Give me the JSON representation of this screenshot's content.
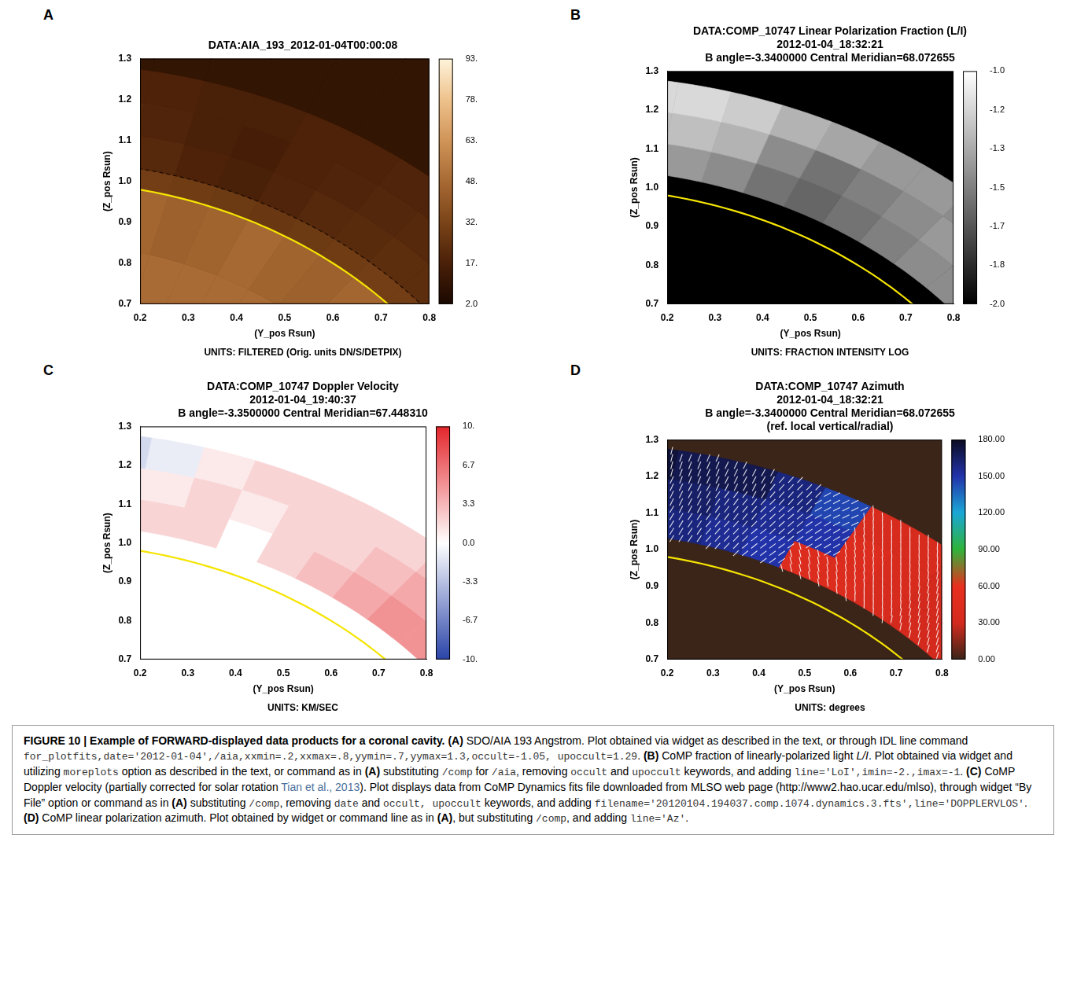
{
  "chart_data": [
    {
      "panel": "A",
      "type": "heatmap",
      "title": [
        "DATA:AIA_193_2012-01-04T00:00:08"
      ],
      "subtitle": "UNITS: FILTERED (Orig. units DN/S/DETPIX)",
      "xlabel": "(Y_pos Rsun)",
      "ylabel": "(Z_pos Rsun)",
      "xlim": [
        0.2,
        0.8
      ],
      "xticks": [
        0.2,
        0.3,
        0.4,
        0.5,
        0.6,
        0.7,
        0.8
      ],
      "ylim": [
        0.7,
        1.3
      ],
      "yticks": [
        0.7,
        0.8,
        0.9,
        {
          "value": 1,
          "label": "1.0"
        },
        1.1,
        1.2,
        1.3
      ],
      "radius_bins": [
        0.7,
        0.85,
        1.0,
        1.05,
        1.13,
        1.21,
        1.29,
        1.6
      ],
      "angle_bins": [
        40,
        45,
        50,
        55,
        60,
        65,
        70,
        75,
        80,
        85
      ],
      "cells": [
        [
          48,
          48,
          48,
          48,
          48,
          48,
          48,
          48,
          48
        ],
        [
          45,
          46,
          44,
          45,
          47,
          45,
          44,
          46,
          45
        ],
        [
          30,
          30,
          29,
          28,
          27,
          28,
          29,
          30,
          30
        ],
        [
          23,
          23,
          22,
          21,
          19,
          17,
          18,
          21,
          22
        ],
        [
          21,
          21,
          20,
          19,
          18,
          16,
          17,
          19,
          20
        ],
        [
          19,
          19,
          19,
          18,
          18,
          17,
          17,
          18,
          18
        ],
        [
          10,
          10,
          10,
          10,
          10,
          10,
          10,
          10,
          10
        ]
      ],
      "fill_value": 10,
      "circles": [
        {
          "radius": 1.0,
          "color": "#f5e400",
          "line_style": "solid"
        },
        {
          "radius": 1.05,
          "color": "#1a0a00",
          "line_style": "dashed"
        }
      ],
      "colorbar": {
        "lim": [
          2,
          93
        ],
        "ticks": [
          {
            "value": 2,
            "label": "2.0"
          },
          {
            "value": 17.17,
            "label": "17."
          },
          {
            "value": 32.33,
            "label": "32."
          },
          {
            "value": 47.5,
            "label": "48."
          },
          {
            "value": 62.67,
            "label": "63."
          },
          {
            "value": 77.83,
            "label": "78."
          },
          {
            "value": 93,
            "label": "93."
          }
        ],
        "colors": [
          "#1a0800",
          "#4a2008",
          "#7a4418",
          "#a86a34",
          "#d09458",
          "#eec28c",
          "#fff4dc"
        ]
      }
    },
    {
      "panel": "B",
      "type": "heatmap",
      "title": [
        "DATA:COMP_10747 Linear Polarization Fraction (L/I)",
        "2012-01-04_18:32:21",
        "B angle=-3.3400000 Central Meridian=68.072655"
      ],
      "subtitle": "UNITS: FRACTION INTENSITY LOG",
      "xlabel": "(Y_pos Rsun)",
      "ylabel": "(Z_pos Rsun)",
      "xlim": [
        0.2,
        0.8
      ],
      "xticks": [
        0.2,
        0.3,
        0.4,
        0.5,
        0.6,
        0.7,
        0.8
      ],
      "ylim": [
        0.7,
        1.3
      ],
      "yticks": [
        0.7,
        0.8,
        0.9,
        {
          "value": 1,
          "label": "1.0"
        },
        1.1,
        1.2,
        1.3
      ],
      "radius_bins": [
        1.05,
        1.13,
        1.21,
        1.29
      ],
      "angle_bins": [
        40,
        45,
        50,
        55,
        60,
        65,
        70,
        75,
        80,
        85
      ],
      "cells": [
        [
          -1.45,
          -1.45,
          -1.5,
          -1.55,
          -1.6,
          -1.55,
          -1.45,
          -1.4,
          -1.35
        ],
        [
          -1.4,
          -1.4,
          -1.45,
          -1.5,
          -1.55,
          -1.45,
          -1.3,
          -1.25,
          -1.25
        ],
        [
          -1.45,
          -1.45,
          -1.4,
          -1.4,
          -1.35,
          -1.3,
          -1.2,
          -1.15,
          -1.15
        ]
      ],
      "fill_value": -2,
      "circles": [
        {
          "radius": 1.0,
          "color": "#f5e400",
          "line_style": "solid"
        }
      ],
      "colorbar": {
        "lim": [
          -2,
          -1
        ],
        "ticks": [
          {
            "value": -2,
            "label": "-2.0"
          },
          {
            "value": -1.833,
            "label": "-1.8"
          },
          {
            "value": -1.667,
            "label": "-1.7"
          },
          {
            "value": -1.5,
            "label": "-1.5"
          },
          {
            "value": -1.333,
            "label": "-1.3"
          },
          {
            "value": -1.167,
            "label": "-1.2"
          },
          {
            "value": -1,
            "label": "-1.0"
          }
        ],
        "colors": [
          "#000000",
          "#ffffff"
        ]
      }
    },
    {
      "panel": "C",
      "type": "heatmap",
      "title": [
        "DATA:COMP_10747 Doppler Velocity",
        "2012-01-04_19:40:37",
        "B angle=-3.3500000 Central Meridian=67.448310"
      ],
      "subtitle": "UNITS: KM/SEC",
      "xlabel": "(Y_pos Rsun)",
      "ylabel": "(Z_pos Rsun)",
      "xlim": [
        0.2,
        0.8
      ],
      "xticks": [
        0.2,
        0.3,
        0.4,
        0.5,
        0.6,
        0.7,
        0.8
      ],
      "ylim": [
        0.7,
        1.3
      ],
      "yticks": [
        0.7,
        0.8,
        0.9,
        {
          "value": 1,
          "label": "1.0"
        },
        1.1,
        1.2,
        1.3
      ],
      "radius_bins": [
        1.05,
        1.13,
        1.21,
        1.29
      ],
      "angle_bins": [
        40,
        45,
        50,
        55,
        60,
        65,
        70,
        75,
        80,
        85
      ],
      "cells": [
        [
          5,
          5,
          4,
          3,
          2,
          0,
          2,
          2,
          2
        ],
        [
          4,
          4,
          3,
          2,
          2,
          1,
          2,
          1,
          1
        ],
        [
          3,
          3,
          2,
          2,
          2,
          2,
          1,
          -1,
          -2
        ]
      ],
      "fill_value": 0,
      "circles": [
        {
          "radius": 1.0,
          "color": "#f5e400",
          "line_style": "solid"
        }
      ],
      "colorbar": {
        "lim": [
          -10,
          10
        ],
        "ticks": [
          {
            "value": -10,
            "label": "-10."
          },
          {
            "value": -6.667,
            "label": "-6.7"
          },
          {
            "value": -3.333,
            "label": "-3.3"
          },
          {
            "value": 0,
            "label": "0.0"
          },
          {
            "value": 3.333,
            "label": "3.3"
          },
          {
            "value": 6.667,
            "label": "6.7"
          },
          {
            "value": 10,
            "label": "10."
          }
        ],
        "colors": [
          "#2a44a8",
          "#ffffff",
          "#e3262b"
        ]
      }
    },
    {
      "panel": "D",
      "type": "heatmap",
      "marker": "line",
      "title": [
        "DATA:COMP_10747 Azimuth",
        "2012-01-04_18:32:21",
        "B angle=-3.3400000 Central Meridian=68.072655",
        "(ref. local vertical/radial)"
      ],
      "subtitle": "UNITS: degrees",
      "xlabel": "(Y_pos Rsun)",
      "ylabel": "(Z_pos Rsun)",
      "xlim": [
        0.2,
        0.8
      ],
      "xticks": [
        0.2,
        0.3,
        0.4,
        0.5,
        0.6,
        0.7,
        0.8
      ],
      "ylim": [
        0.7,
        1.3
      ],
      "yticks": [
        0.7,
        0.8,
        0.9,
        {
          "value": 1,
          "label": "1.0"
        },
        1.1,
        1.2,
        1.3
      ],
      "radius_bins": [
        1.05,
        1.13,
        1.21,
        1.29
      ],
      "angle_bins": [
        40,
        45,
        50,
        55,
        60,
        65,
        70,
        75,
        80,
        85
      ],
      "cells": [
        [
          30,
          30,
          35,
          40,
          40,
          150,
          155,
          160,
          160
        ],
        [
          25,
          30,
          35,
          40,
          150,
          155,
          160,
          165,
          165
        ],
        [
          30,
          30,
          35,
          35,
          145,
          160,
          170,
          170,
          175
        ]
      ],
      "fill_value": 0,
      "circles": [
        {
          "radius": 1.0,
          "color": "#f5e400",
          "line_style": "solid"
        }
      ],
      "colorbar": {
        "lim": [
          0,
          180
        ],
        "ticks": [
          {
            "value": 0,
            "label": "0.00"
          },
          {
            "value": 30,
            "label": "30.00"
          },
          {
            "value": 60,
            "label": "60.00"
          },
          {
            "value": 90,
            "label": "90.00"
          },
          {
            "value": 120,
            "label": "120.00"
          },
          {
            "value": 150,
            "label": "150.00"
          },
          {
            "value": 180,
            "label": "180.00"
          }
        ],
        "colors": [
          "#3b2418",
          "#d42a1e",
          "#e8301e",
          "#2fb33a",
          "#1aa7d6",
          "#2233aa",
          "#0b0b22"
        ]
      }
    }
  ],
  "caption": [
    {
      "text": "FIGURE 10 | Example of FORWARD-displayed data products for a coronal cavity.",
      "style": "bold"
    },
    {
      "text": " ",
      "style": "plain"
    },
    {
      "text": "(A)",
      "style": "bold"
    },
    {
      "text": " SDO/AIA 193 Angstrom. Plot obtained via widget as described in the text, or through IDL line command ",
      "style": "plain"
    },
    {
      "text": "for_plotfits,date='2012-01-04',/aia,xxmin=.2,xxmax=.8,yymin=.7,yymax=1.3,occult=-1.05, upoccult=1.29",
      "style": "code"
    },
    {
      "text": ". ",
      "style": "plain"
    },
    {
      "text": "(B)",
      "style": "bold"
    },
    {
      "text": " CoMP fraction of linearly-polarized light ",
      "style": "plain"
    },
    {
      "text": "L/I",
      "style": "italic"
    },
    {
      "text": ". Plot obtained via widget and utilizing ",
      "style": "plain"
    },
    {
      "text": "moreplots",
      "style": "code"
    },
    {
      "text": " option as described in the text, or command as in ",
      "style": "plain"
    },
    {
      "text": "(A)",
      "style": "bold"
    },
    {
      "text": " substituting ",
      "style": "plain"
    },
    {
      "text": "/comp",
      "style": "code"
    },
    {
      "text": " for ",
      "style": "plain"
    },
    {
      "text": "/aia",
      "style": "code"
    },
    {
      "text": ", removing ",
      "style": "plain"
    },
    {
      "text": "occult",
      "style": "code"
    },
    {
      "text": " and ",
      "style": "plain"
    },
    {
      "text": "upoccult",
      "style": "code"
    },
    {
      "text": " keywords, and adding ",
      "style": "plain"
    },
    {
      "text": "line='LoI',imin=-2.,imax=-1",
      "style": "code"
    },
    {
      "text": ". ",
      "style": "plain"
    },
    {
      "text": "(C)",
      "style": "bold"
    },
    {
      "text": " CoMP Doppler velocity (partially corrected for solar rotation ",
      "style": "plain"
    },
    {
      "text": "Tian et al., 2013",
      "style": "link"
    },
    {
      "text": "). Plot displays data from CoMP Dynamics fits file downloaded from MLSO web page (http://www2.hao.ucar.edu/mlso), through widget “By File” option or command as in ",
      "style": "plain"
    },
    {
      "text": "(A)",
      "style": "bold"
    },
    {
      "text": " substituting ",
      "style": "plain"
    },
    {
      "text": "/comp",
      "style": "code"
    },
    {
      "text": ", removing ",
      "style": "plain"
    },
    {
      "text": "date",
      "style": "code"
    },
    {
      "text": " and ",
      "style": "plain"
    },
    {
      "text": "occult, upoccult",
      "style": "code"
    },
    {
      "text": " keywords, and adding ",
      "style": "plain"
    },
    {
      "text": "filename='20120104.194037.comp.1074.dynamics.3.fts',line='DOPPLERVLOS'",
      "style": "code"
    },
    {
      "text": ". ",
      "style": "plain"
    },
    {
      "text": "(D)",
      "style": "bold"
    },
    {
      "text": " CoMP linear polarization azimuth. Plot obtained by widget or command line as in ",
      "style": "plain"
    },
    {
      "text": "(A)",
      "style": "bold"
    },
    {
      "text": ", but substituting ",
      "style": "plain"
    },
    {
      "text": "/comp",
      "style": "code"
    },
    {
      "text": ", and adding ",
      "style": "plain"
    },
    {
      "text": "line='Az'",
      "style": "code"
    },
    {
      "text": ".",
      "style": "plain"
    }
  ]
}
